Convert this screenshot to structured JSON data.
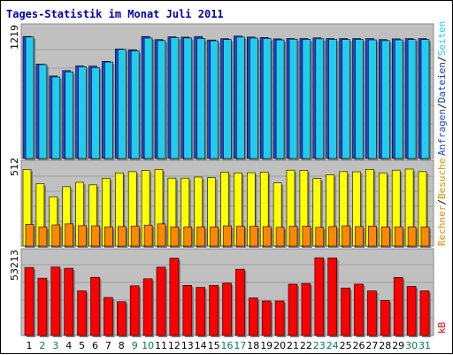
{
  "chart_data": [
    {
      "type": "bar",
      "title": "Tages-Statistik im Monat Juli 2011",
      "panel": "top",
      "ymax_label": "1219",
      "ylim": [
        0,
        1219
      ],
      "categories": [
        "1",
        "2",
        "3",
        "4",
        "5",
        "6",
        "7",
        "8",
        "9",
        "10",
        "11",
        "12",
        "13",
        "14",
        "15",
        "16",
        "17",
        "18",
        "19",
        "20",
        "21",
        "22",
        "23",
        "24",
        "25",
        "26",
        "27",
        "28",
        "29",
        "30",
        "31"
      ],
      "series": [
        {
          "name": "Anfragen",
          "color": "#2244dd",
          "values": [
            1183,
            915,
            800,
            852,
            898,
            896,
            942,
            1062,
            1054,
            1183,
            1153,
            1180,
            1177,
            1183,
            1149,
            1162,
            1187,
            1177,
            1173,
            1160,
            1163,
            1163,
            1170,
            1163,
            1163,
            1163,
            1163,
            1153,
            1160,
            1163,
            1163
          ]
        },
        {
          "name": "Dateien",
          "color": "#22ccee",
          "values": [
            1178,
            910,
            790,
            840,
            890,
            880,
            935,
            1058,
            1043,
            1168,
            1143,
            1173,
            1168,
            1163,
            1141,
            1153,
            1177,
            1168,
            1163,
            1150,
            1157,
            1155,
            1160,
            1155,
            1153,
            1155,
            1150,
            1143,
            1150,
            1153,
            1153
          ]
        }
      ],
      "legend_labels": [
        "Anfragen",
        "/",
        "Dateien",
        "/",
        "Seiten"
      ],
      "legend_colors": [
        "#2244dd",
        "#000000",
        "#1144bb",
        "#000000",
        "#22ccee"
      ]
    },
    {
      "type": "bar",
      "panel": "middle",
      "ymax_label": "512",
      "ylim": [
        0,
        512
      ],
      "categories": [
        "1",
        "2",
        "3",
        "4",
        "5",
        "6",
        "7",
        "8",
        "9",
        "10",
        "11",
        "12",
        "13",
        "14",
        "15",
        "16",
        "17",
        "18",
        "19",
        "20",
        "21",
        "22",
        "23",
        "24",
        "25",
        "26",
        "27",
        "28",
        "29",
        "30",
        "31"
      ],
      "series": [
        {
          "name": "Besuche",
          "color": "#ffff00",
          "values": [
            510,
            415,
            328,
            395,
            424,
            407,
            451,
            487,
            495,
            503,
            510,
            452,
            452,
            459,
            455,
            492,
            487,
            488,
            492,
            420,
            505,
            503,
            449,
            475,
            495,
            494,
            510,
            487,
            505,
            512,
            495
          ]
        },
        {
          "name": "Rechner",
          "color": "#ff8800",
          "values": [
            145,
            128,
            141,
            148,
            136,
            135,
            128,
            130,
            133,
            140,
            148,
            128,
            128,
            128,
            128,
            135,
            132,
            132,
            130,
            125,
            133,
            133,
            125,
            130,
            135,
            130,
            133,
            128,
            128,
            128,
            128
          ]
        }
      ],
      "legend_labels": [
        "Rechner",
        "/",
        "Besuche"
      ],
      "legend_colors": [
        "#ee8800",
        "#000000",
        "#cc9900"
      ]
    },
    {
      "type": "bar",
      "panel": "bottom",
      "ymax_label": "53213",
      "ylim": [
        0,
        53213
      ],
      "categories": [
        "1",
        "2",
        "3",
        "4",
        "5",
        "6",
        "7",
        "8",
        "9",
        "10",
        "11",
        "12",
        "13",
        "14",
        "15",
        "16",
        "17",
        "18",
        "19",
        "20",
        "21",
        "22",
        "23",
        "24",
        "25",
        "26",
        "27",
        "28",
        "29",
        "30",
        "31"
      ],
      "series": [
        {
          "name": "kB",
          "color": "#ff0000",
          "values": [
            46500,
            39200,
            46800,
            45900,
            30500,
            39800,
            26000,
            23100,
            34000,
            38800,
            46700,
            52900,
            34300,
            32900,
            34300,
            35800,
            45300,
            25700,
            23600,
            23600,
            35100,
            35600,
            53100,
            53000,
            32400,
            35100,
            30500,
            23900,
            39700,
            33600,
            30500
          ]
        }
      ],
      "legend_labels": [
        "kB"
      ],
      "legend_colors": [
        "#ee0000"
      ]
    }
  ],
  "day_labels": [
    "1",
    "2",
    "3",
    "4",
    "5",
    "6",
    "7",
    "8",
    "9",
    "10",
    "11",
    "12",
    "13",
    "14",
    "15",
    "16",
    "17",
    "18",
    "19",
    "20",
    "21",
    "22",
    "23",
    "24",
    "25",
    "26",
    "27",
    "28",
    "29",
    "30",
    "31"
  ],
  "day_label_colors": {
    "weekday": "#000000",
    "weekend": "#00805a"
  },
  "weekend_days": [
    2,
    3,
    9,
    10,
    16,
    17,
    23,
    24,
    30,
    31
  ]
}
